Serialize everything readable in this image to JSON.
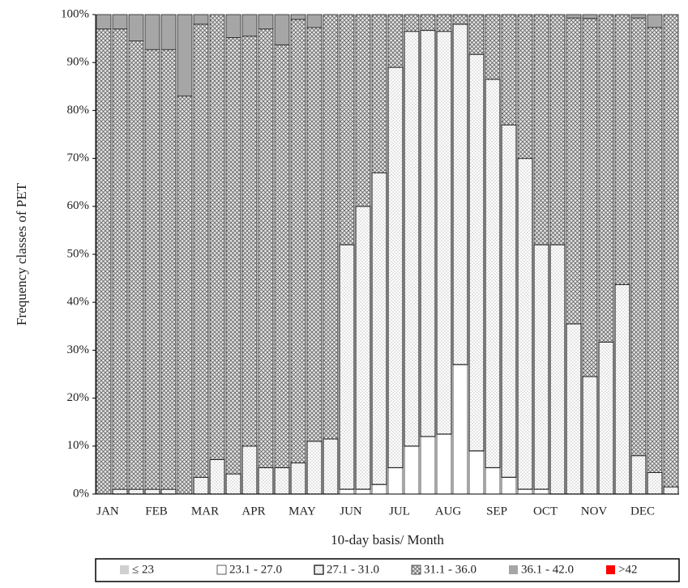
{
  "chart_data": {
    "type": "stacked_bar",
    "y_label": "Frequency classes of PET",
    "x_label": "10-day basis/ Month",
    "categories": [
      "JAN",
      null,
      null,
      "FEB",
      null,
      null,
      "MAR",
      null,
      null,
      "APR",
      null,
      null,
      "MAY",
      null,
      null,
      "JUN",
      null,
      null,
      "JUL",
      null,
      null,
      "AUG",
      null,
      null,
      "SEP",
      null,
      null,
      "OCT",
      null,
      null,
      "NOV",
      null,
      null,
      "DEC",
      null,
      null
    ],
    "ylim": [
      0,
      100
    ],
    "yticks": [
      {
        "value": 0,
        "label": "0%"
      },
      {
        "value": 10,
        "label": "10%"
      },
      {
        "value": 20,
        "label": "20%"
      },
      {
        "value": 30,
        "label": "30%"
      },
      {
        "value": 40,
        "label": "40%"
      },
      {
        "value": 50,
        "label": "50%"
      },
      {
        "value": 60,
        "label": "60%"
      },
      {
        "value": 70,
        "label": "70%"
      },
      {
        "value": 80,
        "label": "80%"
      },
      {
        "value": 90,
        "label": "90%"
      },
      {
        "value": 100,
        "label": "100%"
      }
    ],
    "series": [
      {
        "name": "≤ 23",
        "color": "#d0d0d0",
        "pattern": "none",
        "values": [
          0,
          0,
          0,
          0,
          0,
          0,
          0,
          0,
          0,
          0,
          0,
          0,
          0,
          0,
          0,
          0,
          0,
          0,
          0,
          0,
          0,
          0,
          0,
          0,
          0,
          0,
          0,
          0,
          0,
          0,
          0,
          0,
          0,
          0,
          0,
          0
        ]
      },
      {
        "name": "23.1 - 27.0",
        "color": "#ffffff",
        "pattern": "none",
        "values": [
          0,
          0,
          0,
          0,
          0,
          0,
          0,
          0,
          0,
          0,
          0,
          0,
          0,
          0,
          0,
          1,
          1,
          2,
          5.5,
          10,
          12,
          12.5,
          27,
          9,
          5.5,
          3.5,
          1,
          1,
          0,
          0,
          0,
          0,
          0,
          0,
          0,
          0
        ]
      },
      {
        "name": "27.1 - 31.0",
        "color": "#ffffff",
        "pattern": "dots",
        "values": [
          0,
          1,
          1,
          1,
          1,
          0,
          3.5,
          7.2,
          4.2,
          10,
          5.5,
          5.5,
          6.5,
          11,
          11.5,
          51,
          59,
          65,
          83.5,
          86.5,
          84.7,
          84,
          71,
          82.7,
          81,
          73.5,
          69,
          51,
          52,
          35.5,
          24.5,
          31.7,
          43.7,
          8,
          4.5,
          1.5
        ]
      },
      {
        "name": "31.1 - 36.0",
        "color": "#777777",
        "pattern": "crosshatch",
        "values": [
          97,
          96,
          93.5,
          91.7,
          91.7,
          83,
          94.5,
          92.8,
          91,
          85.5,
          91.5,
          88.2,
          92.5,
          86.3,
          88.5,
          48,
          40,
          33,
          11,
          3.5,
          3.3,
          3.5,
          2,
          8.3,
          13.5,
          23,
          30,
          48,
          48,
          63.8,
          74.7,
          68.3,
          56.3,
          91.3,
          92.8,
          98.5
        ]
      },
      {
        "name": "36.1 - 42.0",
        "color": "#a6a6a6",
        "pattern": "none",
        "values": [
          3,
          3,
          5.5,
          7.3,
          7.3,
          17,
          2,
          0,
          4.8,
          4.5,
          3,
          6.3,
          1,
          2.7,
          0,
          0,
          0,
          0,
          0,
          0,
          0,
          0,
          0,
          0,
          0,
          0,
          0,
          0,
          0,
          0.7,
          0.8,
          0,
          0,
          0.7,
          2.7,
          0
        ]
      },
      {
        "name": ">42",
        "color": "#ff0000",
        "pattern": "none",
        "values": [
          0,
          0,
          0,
          0,
          0,
          0,
          0,
          0,
          0,
          0,
          0,
          0,
          0,
          0,
          0,
          0,
          0,
          0,
          0,
          0,
          0,
          0,
          0,
          0,
          0,
          0,
          0,
          0,
          0,
          0,
          0,
          0,
          0,
          0,
          0,
          0
        ]
      }
    ],
    "grid": false
  }
}
